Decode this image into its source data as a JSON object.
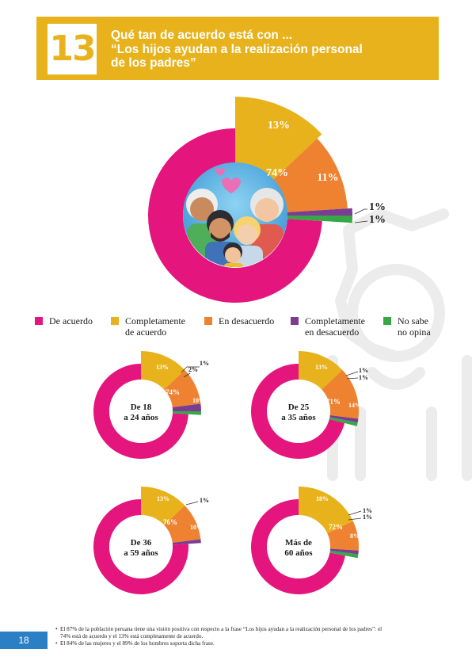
{
  "header": {
    "number": "13",
    "title_line1": "Qué tan de acuerdo está con ...",
    "title_line2": "“Los hijos ayudan a la realización personal",
    "title_line3": "de los padres”"
  },
  "colors": {
    "de_acuerdo": "#e5157e",
    "completamente_acuerdo": "#e8b21c",
    "en_desacuerdo": "#ee8230",
    "completamente_desacuerdo": "#7a3d92",
    "no_sabe": "#37a845",
    "remainder": "#e3e3e5"
  },
  "legend": [
    {
      "line1": "De acuerdo",
      "line2": "",
      "color": "#e5157e"
    },
    {
      "line1": "Completamente",
      "line2": "de acuerdo",
      "color": "#e8b21c"
    },
    {
      "line1": "En desacuerdo",
      "line2": "",
      "color": "#ee8230"
    },
    {
      "line1": "Completamente",
      "line2": "en  desacuerdo",
      "color": "#7a3d92"
    },
    {
      "line1": "No sabe",
      "line2": "no opina",
      "color": "#37a845"
    }
  ],
  "chart_data": [
    {
      "type": "pie",
      "title": "",
      "categories": [
        "De acuerdo",
        "Completamente de acuerdo",
        "En desacuerdo",
        "Completamente en desacuerdo",
        "No sabe no opina"
      ],
      "values": [
        74,
        13,
        11,
        1,
        1
      ],
      "labels": [
        "74%",
        "13%",
        "11%",
        "1%",
        "1%"
      ]
    },
    {
      "type": "pie",
      "title": "De 18 a 24 años",
      "title_line1": "De 18",
      "title_line2": "a 24 años",
      "categories": [
        "De acuerdo",
        "Completamente de acuerdo",
        "En desacuerdo",
        "Completamente en desacuerdo",
        "No sabe no opina"
      ],
      "values": [
        74,
        13,
        10,
        2,
        1
      ],
      "labels": [
        "74%",
        "13%",
        "10%",
        "2%",
        "1%"
      ]
    },
    {
      "type": "pie",
      "title": "De 25 a 35 años",
      "title_line1": "De 25",
      "title_line2": "a 35 años",
      "categories": [
        "De acuerdo",
        "Completamente de acuerdo",
        "En desacuerdo",
        "Completamente en desacuerdo",
        "No sabe no opina"
      ],
      "values": [
        71,
        13,
        14,
        1,
        1
      ],
      "labels": [
        "71%",
        "13%",
        "14%",
        "1%",
        "1%"
      ]
    },
    {
      "type": "pie",
      "title": "De 36 a 59 años",
      "title_line1": "De 36",
      "title_line2": "a 59 años",
      "categories": [
        "De acuerdo",
        "Completamente de acuerdo",
        "En desacuerdo",
        "Completamente en desacuerdo"
      ],
      "values": [
        76,
        13,
        10,
        1
      ],
      "labels": [
        "76%",
        "13%",
        "10%",
        "1%"
      ]
    },
    {
      "type": "pie",
      "title": "Más de 60 años",
      "title_line1": "Más de",
      "title_line2": "60 años",
      "categories": [
        "De acuerdo",
        "Completamente de acuerdo",
        "En desacuerdo",
        "Completamente en desacuerdo",
        "No sabe no opina"
      ],
      "values": [
        72,
        18,
        8,
        1,
        1
      ],
      "labels": [
        "72%",
        "18%",
        "8%",
        "1%",
        "1%"
      ]
    }
  ],
  "footer": {
    "page_number": "18",
    "note1": "El 87% de la población peruana tiene una visión positiva con respecto a la frase “Los hijos ayudan a la realización personal de los padres”: el 74% está de acuerdo y el 13% está completamente de acuerdo.",
    "note2": "El 84% de las mujeres y el 89% de los hombres soporta dicha frase."
  }
}
